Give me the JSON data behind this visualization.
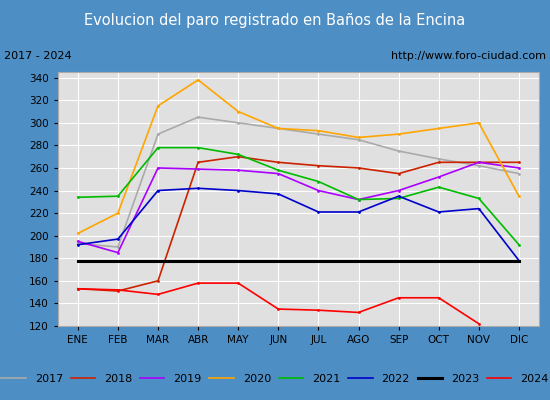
{
  "title": "Evolucion del paro registrado en Baños de la Encina",
  "subtitle_left": "2017 - 2024",
  "subtitle_right": "http://www.foro-ciudad.com",
  "months": [
    "ENE",
    "FEB",
    "MAR",
    "ABR",
    "MAY",
    "JUN",
    "JUL",
    "AGO",
    "SEP",
    "OCT",
    "NOV",
    "DIC"
  ],
  "ylim": [
    120,
    345
  ],
  "yticks": [
    120,
    140,
    160,
    180,
    200,
    220,
    240,
    260,
    280,
    300,
    320,
    340
  ],
  "series": {
    "2017": {
      "color": "#aaaaaa",
      "linewidth": 1.2,
      "values": [
        193,
        190,
        290,
        305,
        300,
        295,
        290,
        285,
        275,
        268,
        262,
        255
      ]
    },
    "2018": {
      "color": "#cc2200",
      "linewidth": 1.2,
      "values": [
        153,
        151,
        160,
        265,
        270,
        265,
        262,
        260,
        255,
        265,
        265,
        265
      ]
    },
    "2019": {
      "color": "#aa00ff",
      "linewidth": 1.2,
      "values": [
        195,
        185,
        260,
        259,
        258,
        255,
        240,
        232,
        240,
        252,
        265,
        260
      ]
    },
    "2020": {
      "color": "#ffa500",
      "linewidth": 1.2,
      "values": [
        202,
        220,
        315,
        338,
        310,
        295,
        293,
        287,
        290,
        295,
        300,
        235
      ]
    },
    "2021": {
      "color": "#00bb00",
      "linewidth": 1.2,
      "values": [
        234,
        235,
        278,
        278,
        272,
        258,
        248,
        232,
        233,
        243,
        233,
        192
      ]
    },
    "2022": {
      "color": "#0000cc",
      "linewidth": 1.2,
      "values": [
        192,
        197,
        240,
        242,
        240,
        237,
        221,
        221,
        235,
        221,
        224,
        178
      ]
    },
    "2023": {
      "color": "#000000",
      "linewidth": 2.2,
      "values": [
        178,
        178,
        178,
        178,
        178,
        178,
        178,
        178,
        178,
        178,
        178,
        178
      ]
    },
    "2024": {
      "color": "#ff0000",
      "linewidth": 1.2,
      "values": [
        153,
        152,
        148,
        158,
        158,
        135,
        134,
        132,
        145,
        145,
        122,
        null
      ]
    }
  },
  "title_bgcolor": "#4d8ec4",
  "title_color": "white",
  "subtitle_bgcolor": "white",
  "subtitle_color": "black",
  "plot_bgcolor": "#e0e0e0",
  "grid_color": "white"
}
